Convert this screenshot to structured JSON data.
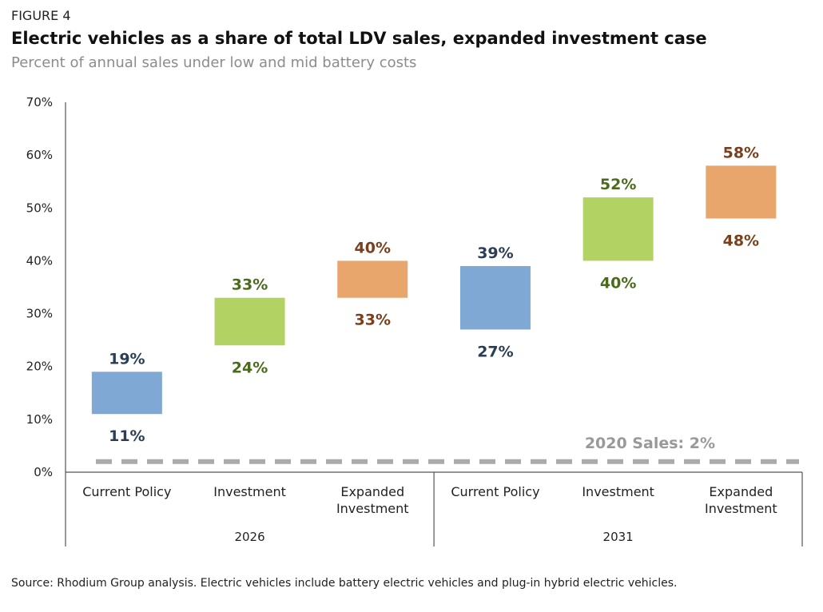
{
  "figure_label": "FIGURE 4",
  "title": "Electric vehicles as a share of total LDV sales, expanded investment case",
  "subtitle": "Percent of annual sales under low and mid battery costs",
  "source": "Source: Rhodium Group analysis. Electric vehicles include battery electric vehicles and plug-in hybrid electric vehicles.",
  "colors": {
    "current_policy": "#7fa8d4",
    "investment": "#b2d363",
    "expanded_investment": "#e9a66c",
    "label_current_policy": "#2b3e56",
    "label_investment": "#4a6a1c",
    "label_expanded_investment": "#7a3f1c",
    "reference_line": "#aaaaaa",
    "axis": "#555555"
  },
  "chart_data": {
    "type": "bar",
    "subtype": "floating-range",
    "ylim": [
      0,
      70
    ],
    "yticks": [
      "0%",
      "10%",
      "20%",
      "30%",
      "40%",
      "50%",
      "60%",
      "70%"
    ],
    "groups": [
      "2026",
      "2031"
    ],
    "categories": [
      "Current Policy",
      "Investment",
      "Expanded Investment"
    ],
    "category_lines": [
      [
        "Current Policy"
      ],
      [
        "Investment"
      ],
      [
        "Expanded",
        "Investment"
      ]
    ],
    "bars": [
      {
        "group": "2026",
        "category": "Current Policy",
        "low": 11,
        "high": 19,
        "low_label": "11%",
        "high_label": "19%",
        "series": "current_policy"
      },
      {
        "group": "2026",
        "category": "Investment",
        "low": 24,
        "high": 33,
        "low_label": "24%",
        "high_label": "33%",
        "series": "investment"
      },
      {
        "group": "2026",
        "category": "Expanded Investment",
        "low": 33,
        "high": 40,
        "low_label": "33%",
        "high_label": "40%",
        "series": "expanded_investment"
      },
      {
        "group": "2031",
        "category": "Current Policy",
        "low": 27,
        "high": 39,
        "low_label": "27%",
        "high_label": "39%",
        "series": "current_policy"
      },
      {
        "group": "2031",
        "category": "Investment",
        "low": 40,
        "high": 52,
        "low_label": "40%",
        "high_label": "52%",
        "series": "investment"
      },
      {
        "group": "2031",
        "category": "Expanded Investment",
        "low": 48,
        "high": 58,
        "low_label": "48%",
        "high_label": "58%",
        "series": "expanded_investment"
      }
    ],
    "reference": {
      "value": 2,
      "label": "2020 Sales: 2%"
    },
    "grid": false,
    "legend": "none"
  }
}
